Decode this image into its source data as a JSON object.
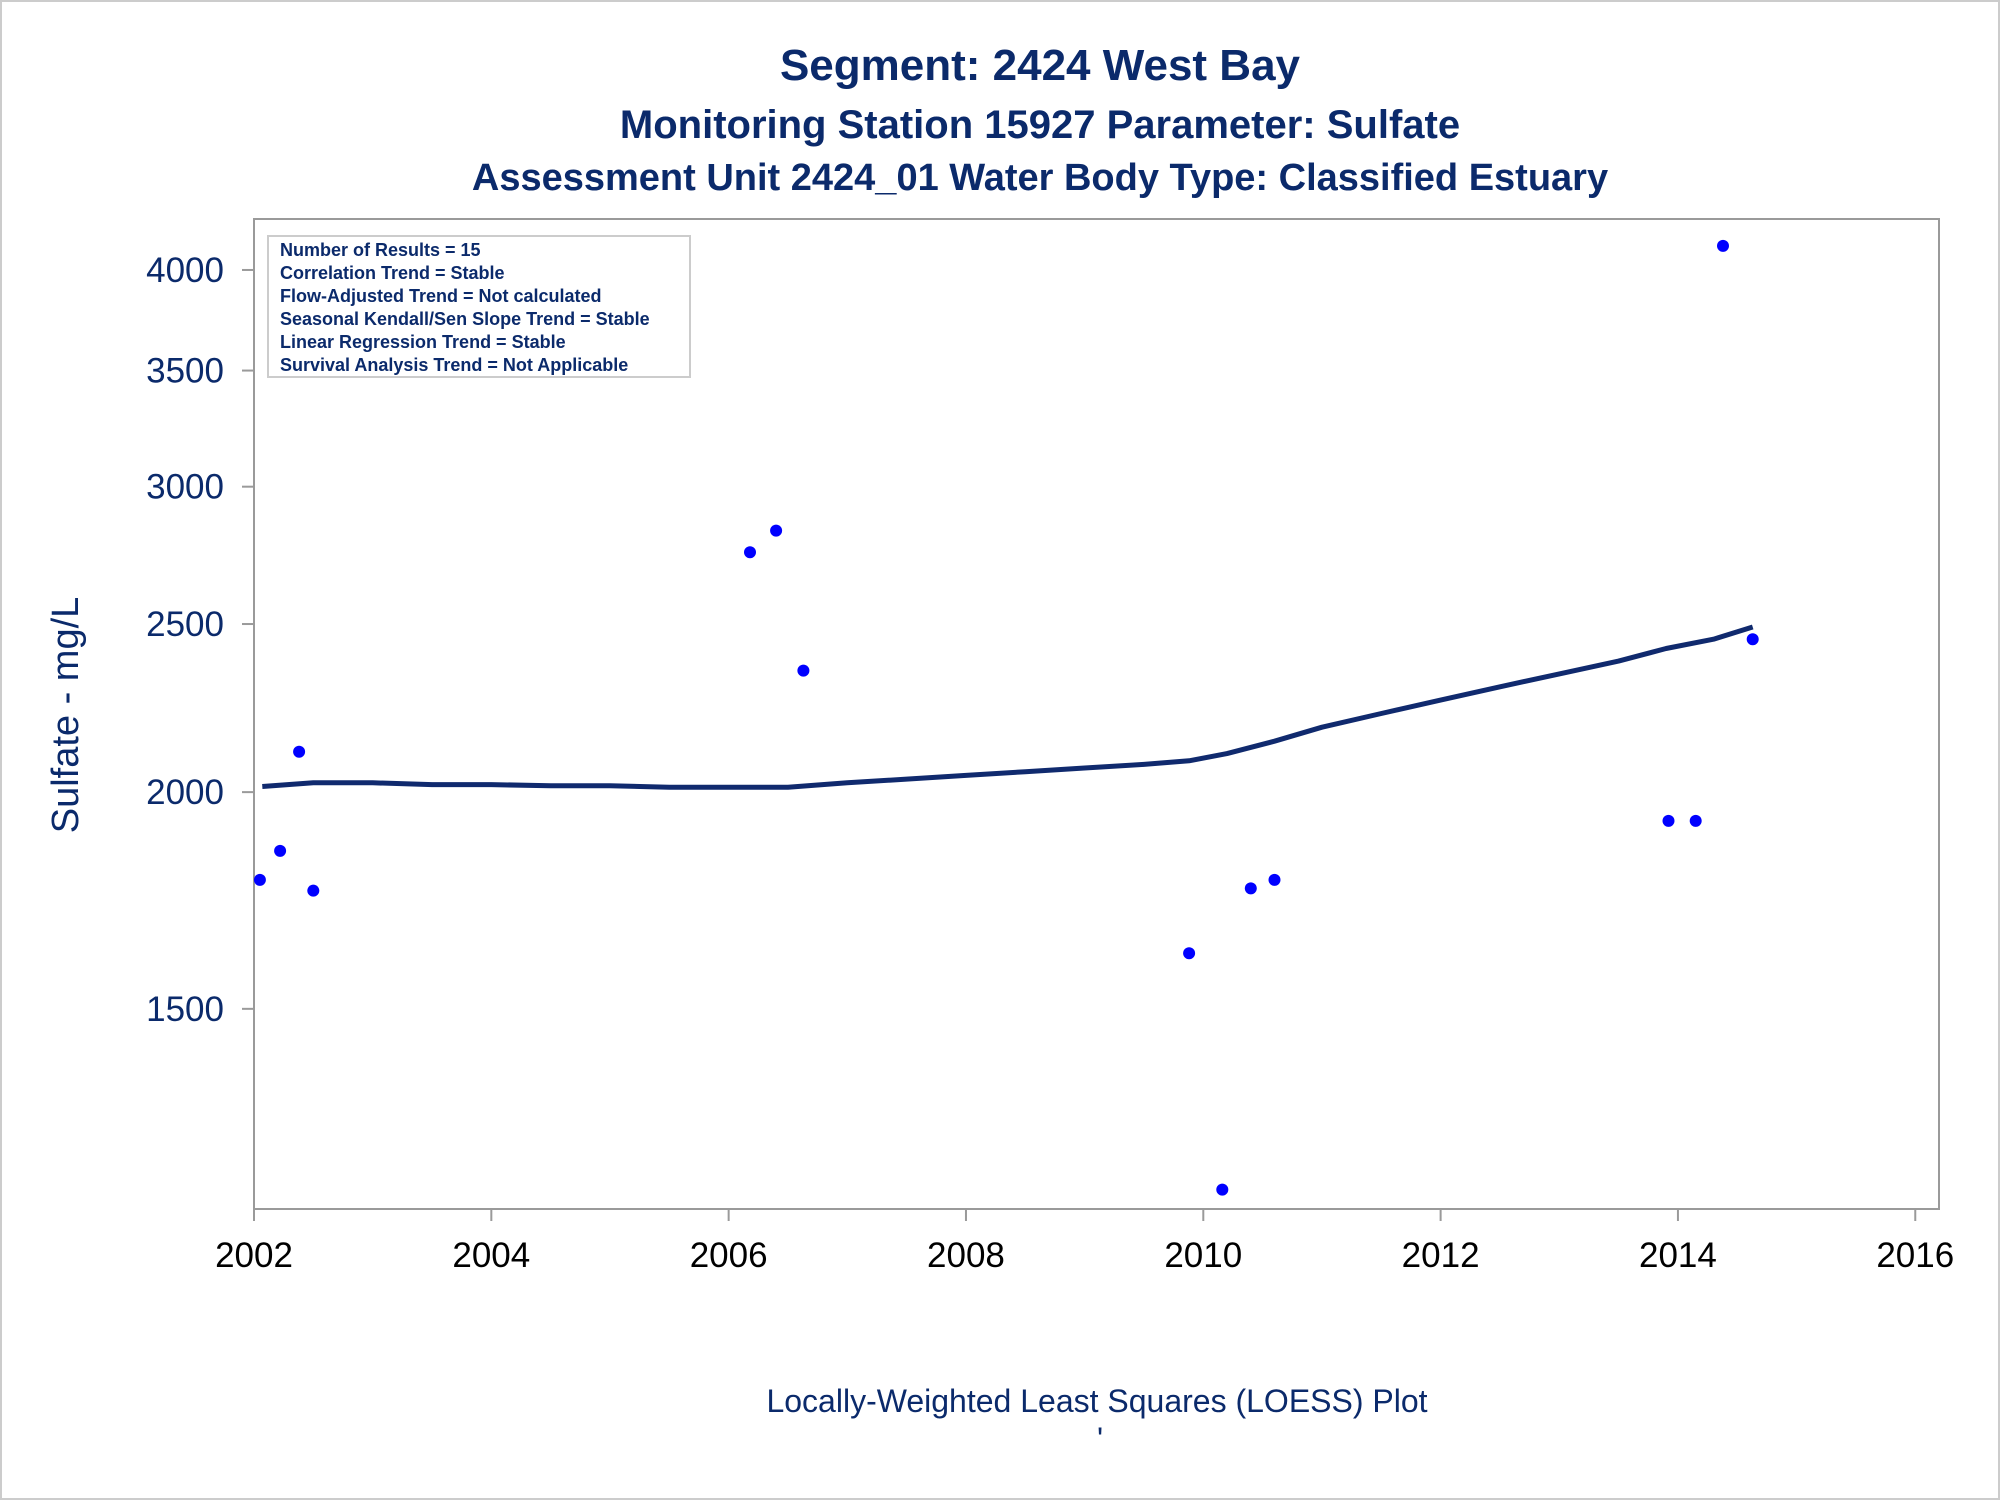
{
  "colors": {
    "text": "#0b2a6b",
    "tick_text": "#000000",
    "frame": "#9a9a9a",
    "outer_border": "#cccccc",
    "marker": "#0000ff",
    "loess_line": "#102a6e"
  },
  "titles": {
    "title": "Segment: 2424  West Bay",
    "subtitle": "Monitoring Station 15927 Parameter: Sulfate",
    "subtitle2": "Assessment Unit 2424_01   Water Body Type: Classified Estuary"
  },
  "footnote": "Locally-Weighted Least Squares (LOESS) Plot",
  "footnote_mark": "'",
  "stats": [
    "Number of Results = 15",
    "Correlation Trend = Stable",
    "Flow-Adjusted Trend = Not calculated",
    "Seasonal Kendall/Sen Slope Trend = Stable",
    "Linear Regression Trend = Stable",
    "Survival Analysis Trend = Not Applicable"
  ],
  "chart_data": {
    "type": "scatter",
    "xlabel": "",
    "ylabel": "Sulfate - mg/L",
    "x_scale": "linear",
    "y_scale": "log",
    "xlim": [
      2002,
      2016.2
    ],
    "ylim": [
      1150,
      4280
    ],
    "x_ticks": [
      2002,
      2004,
      2006,
      2008,
      2010,
      2012,
      2014,
      2016
    ],
    "y_ticks": [
      1500,
      2000,
      2500,
      3000,
      3500,
      4000
    ],
    "grid": false,
    "legend": "none",
    "series": [
      {
        "kind": "points",
        "x": [
          2002.05,
          2002.22,
          2002.38,
          2002.5,
          2006.18,
          2006.4,
          2006.63,
          2009.88,
          2010.16,
          2010.4,
          2010.6,
          2013.92,
          2014.15,
          2014.38,
          2014.63
        ],
        "y": [
          1780,
          1850,
          2110,
          1755,
          2750,
          2830,
          2350,
          1615,
          1180,
          1760,
          1780,
          1925,
          1925,
          4130,
          2450
        ]
      },
      {
        "kind": "loess",
        "x": [
          2002.07,
          2002.5,
          2003.0,
          2003.5,
          2004.0,
          2004.5,
          2005.0,
          2005.5,
          2006.0,
          2006.5,
          2007.0,
          2007.5,
          2008.0,
          2008.5,
          2009.0,
          2009.5,
          2009.88,
          2010.2,
          2010.6,
          2011.0,
          2011.5,
          2012.0,
          2012.5,
          2013.0,
          2013.5,
          2013.9,
          2014.3,
          2014.63
        ],
        "y": [
          2015,
          2025,
          2025,
          2020,
          2020,
          2017,
          2017,
          2013,
          2013,
          2013,
          2025,
          2035,
          2045,
          2055,
          2065,
          2075,
          2085,
          2105,
          2140,
          2180,
          2220,
          2260,
          2300,
          2340,
          2380,
          2420,
          2450,
          2490
        ]
      }
    ]
  }
}
